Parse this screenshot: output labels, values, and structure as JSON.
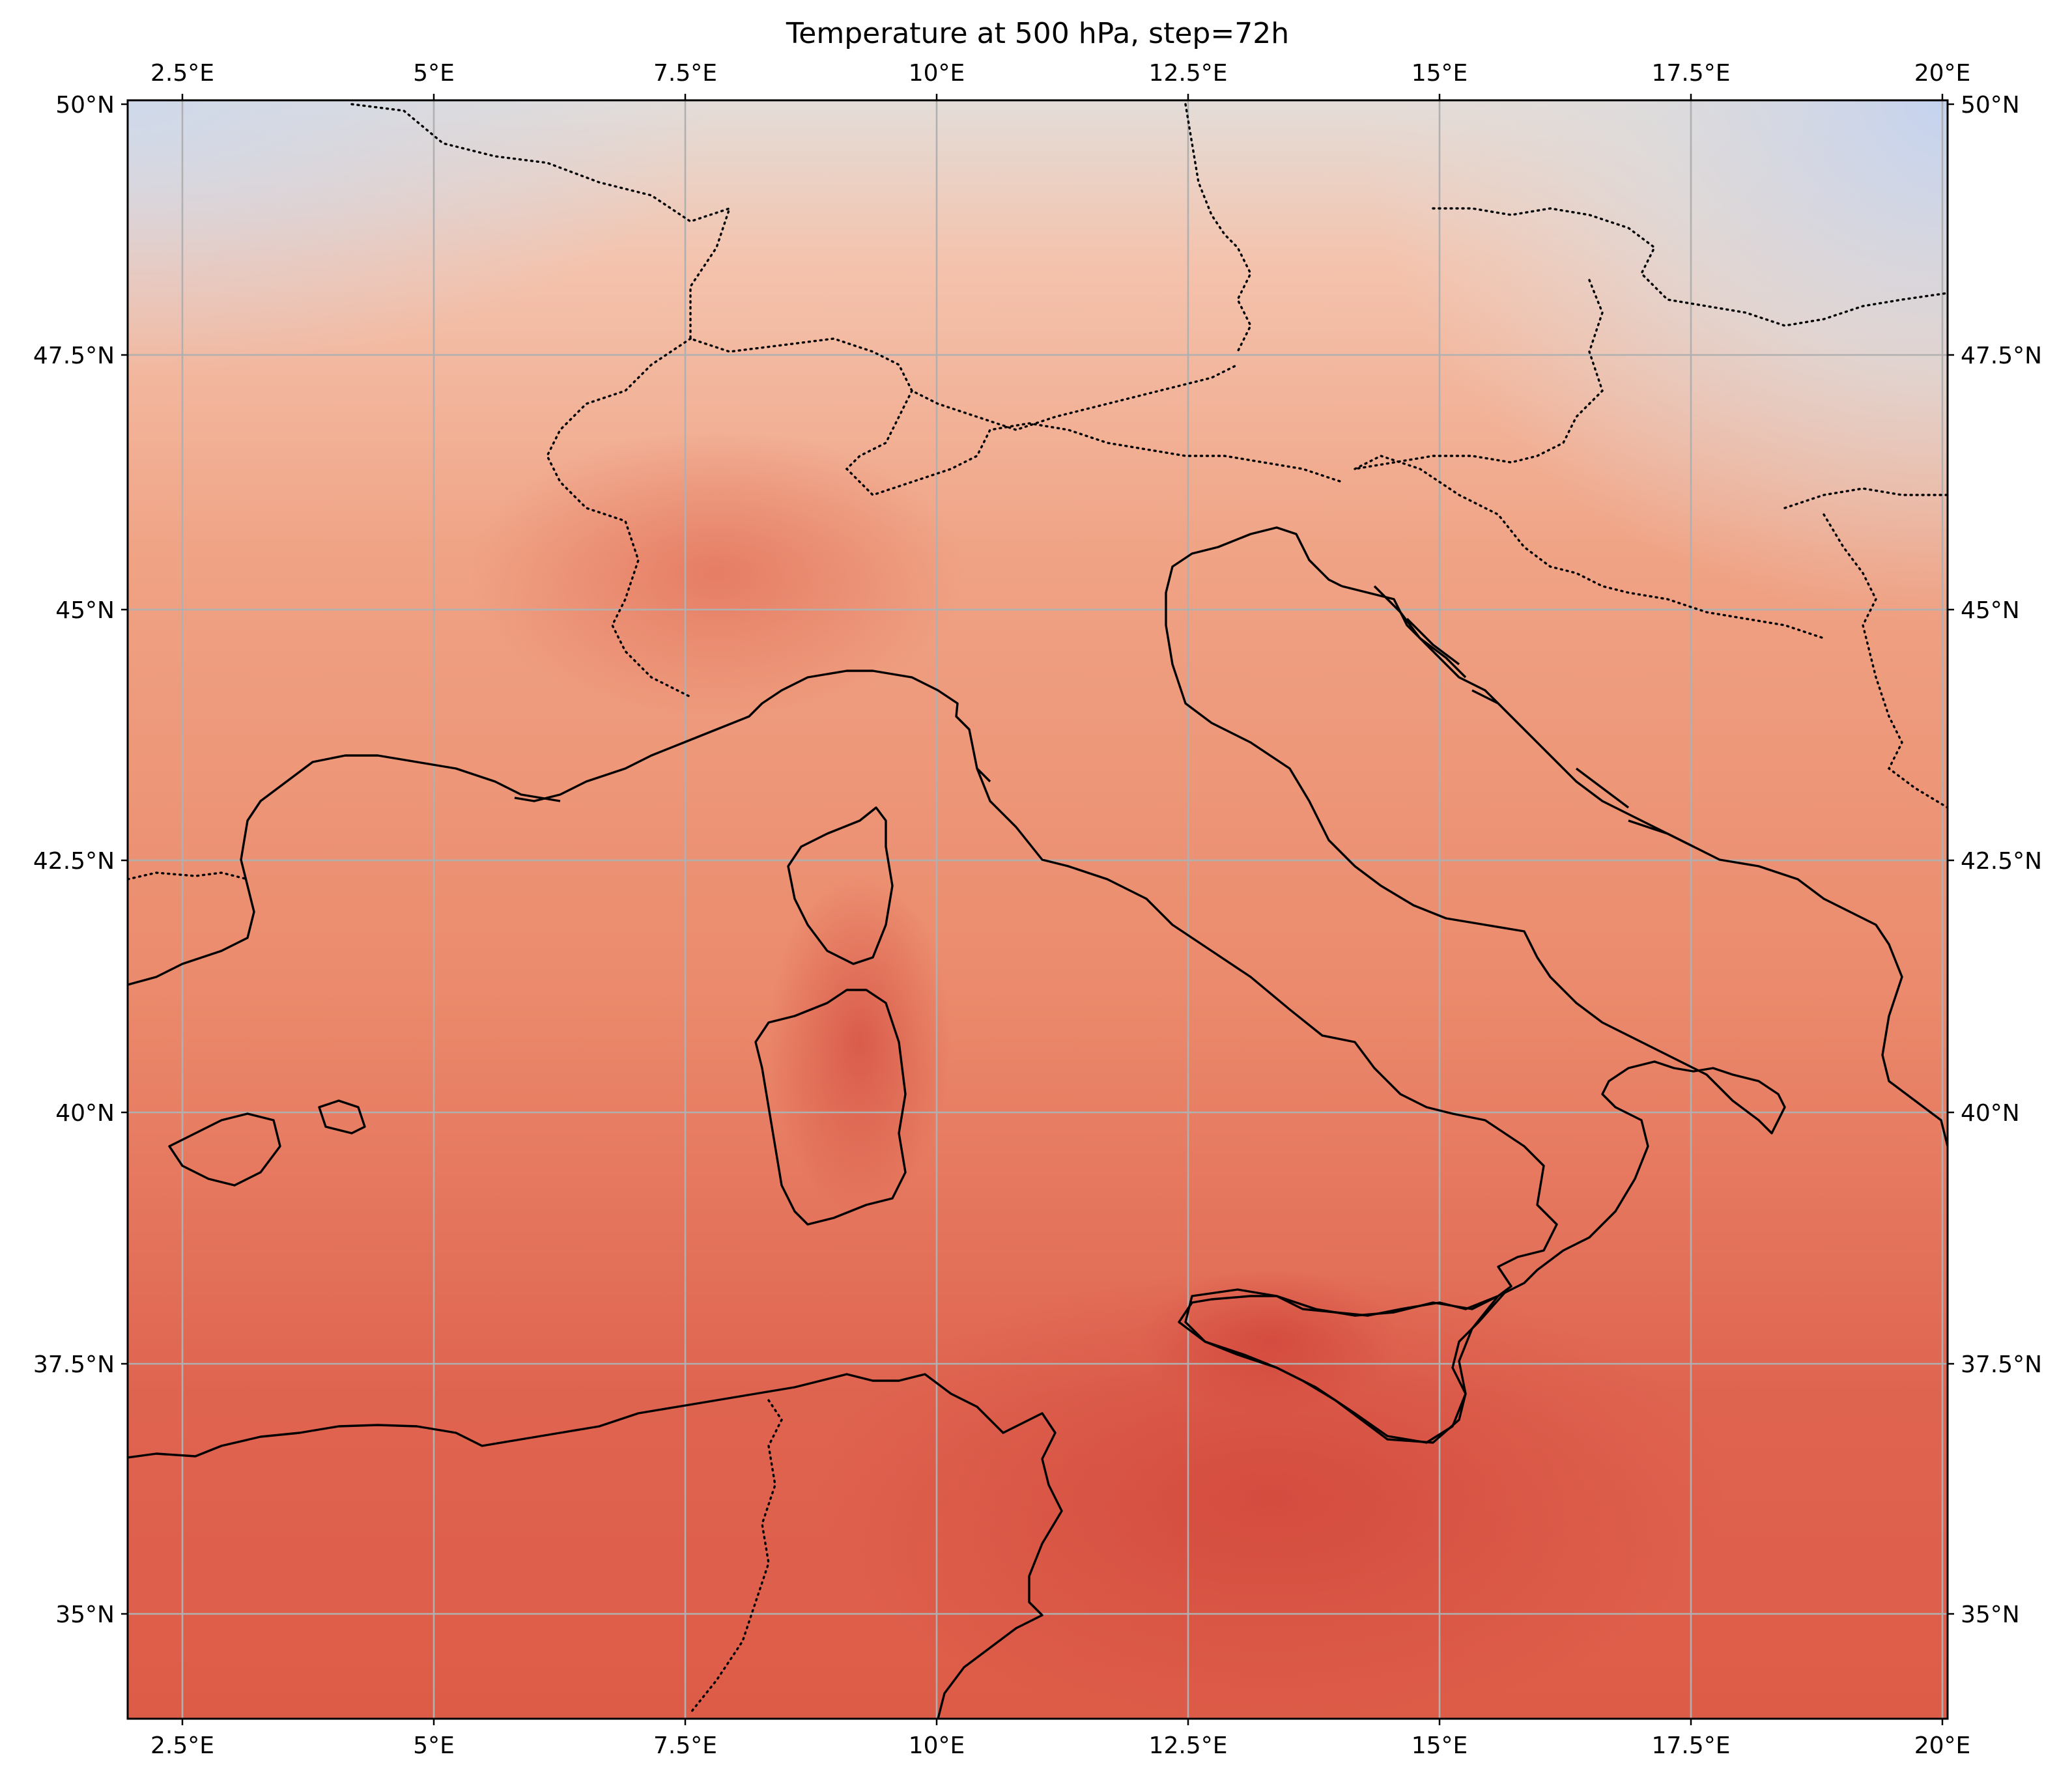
{
  "title": "Temperature at 500 hPa, step=72h",
  "map": {
    "projection": "PlateCarree",
    "lon_range": [
      2.0,
      20.1
    ],
    "lat_range": [
      34.0,
      50.0
    ],
    "colormap": "coolwarm",
    "gridlines": true,
    "gridline_color": "#b0b0b0",
    "coastline_style": "solid black",
    "border_style": "dotted black"
  },
  "x_ticks": [
    {
      "lon": 2.5,
      "label": "2.5°E"
    },
    {
      "lon": 5.0,
      "label": "5°E"
    },
    {
      "lon": 7.5,
      "label": "7.5°E"
    },
    {
      "lon": 10.0,
      "label": "10°E"
    },
    {
      "lon": 12.5,
      "label": "12.5°E"
    },
    {
      "lon": 15.0,
      "label": "15°E"
    },
    {
      "lon": 17.5,
      "label": "17.5°E"
    },
    {
      "lon": 20.0,
      "label": "20°E"
    }
  ],
  "y_ticks": [
    {
      "lat": 50.0,
      "label": "50°N"
    },
    {
      "lat": 47.5,
      "label": "47.5°N"
    },
    {
      "lat": 45.0,
      "label": "45°N"
    },
    {
      "lat": 42.5,
      "label": "42.5°N"
    },
    {
      "lat": 40.0,
      "label": "40°N"
    },
    {
      "lat": 37.5,
      "label": "37.5°N"
    },
    {
      "lat": 35.0,
      "label": "35°N"
    }
  ],
  "colors": {
    "cold": "#c8d6ee",
    "neutral": "#e1dcd7",
    "warm_light": "#f4bca3",
    "warm": "#ee9070",
    "hot": "#d8473c"
  }
}
